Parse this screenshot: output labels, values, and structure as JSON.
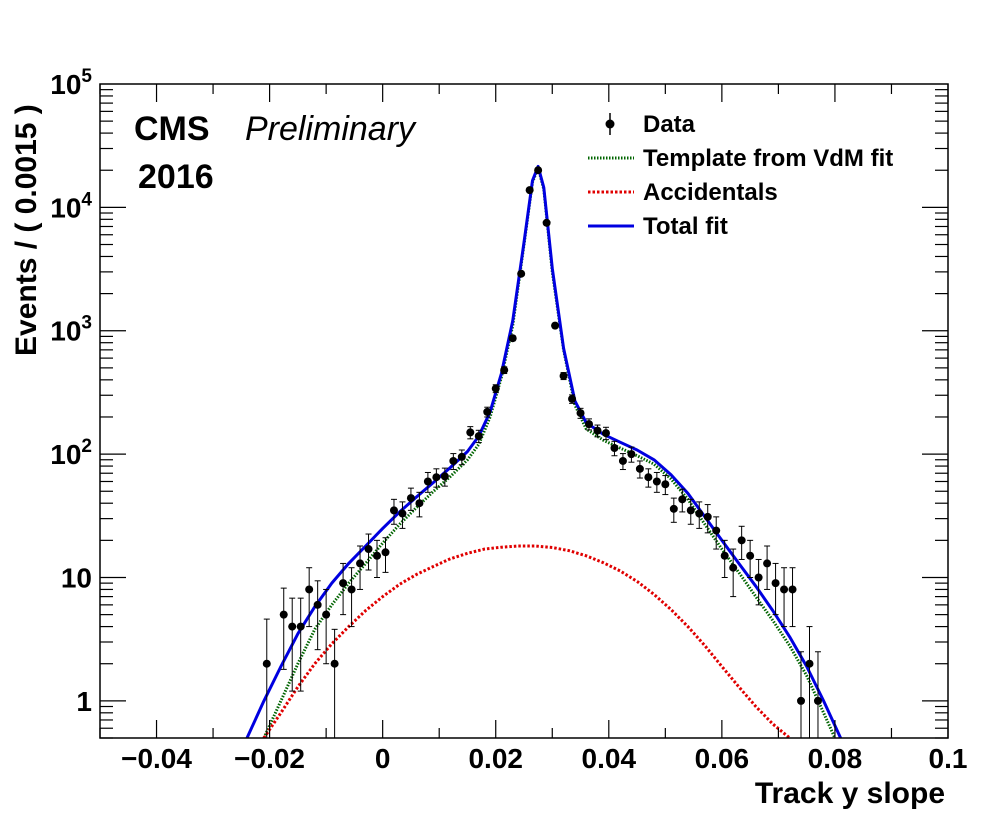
{
  "chart_data": {
    "type": "scatter",
    "experiment": "CMS",
    "status": "Preliminary",
    "year": "2016",
    "xlabel": "Track y slope",
    "ylabel": "Events / ( 0.0015 )",
    "xlim": [
      -0.05,
      0.1
    ],
    "ylim": [
      0.5,
      100000
    ],
    "log_y": true,
    "x_tick_labels": [
      "−0.04",
      "−0.02",
      "0",
      "0.02",
      "0.04",
      "0.06",
      "0.08",
      "0.1"
    ],
    "x_tick_values": [
      -0.04,
      -0.02,
      0,
      0.02,
      0.04,
      0.06,
      0.08,
      0.1
    ],
    "y_tick_values": [
      1,
      10,
      100,
      1000,
      10000,
      100000
    ],
    "y_tick_labels": [
      {
        "base": "1",
        "exp": ""
      },
      {
        "base": "10",
        "exp": ""
      },
      {
        "base": "10",
        "exp": "2"
      },
      {
        "base": "10",
        "exp": "3"
      },
      {
        "base": "10",
        "exp": "4"
      },
      {
        "base": "10",
        "exp": "5"
      }
    ],
    "legend": {
      "position": "top-right",
      "entries": [
        {
          "label": "Data",
          "style": "marker"
        },
        {
          "label": "Template from VdM fit",
          "style": "dotted",
          "color": "#006400"
        },
        {
          "label": "Accidentals",
          "style": "dotted",
          "color": "#e00000"
        },
        {
          "label": "Total fit",
          "style": "solid",
          "color": "#0000e0"
        }
      ]
    },
    "data_points": {
      "name": "Data",
      "points": [
        [
          -0.0205,
          2,
          2.6
        ],
        [
          -0.0175,
          5,
          3.2
        ],
        [
          -0.016,
          4,
          2.8
        ],
        [
          -0.0145,
          4,
          2.8
        ],
        [
          -0.013,
          8,
          4
        ],
        [
          -0.0115,
          6,
          3.4
        ],
        [
          -0.01,
          5,
          3
        ],
        [
          -0.0085,
          2,
          1.8
        ],
        [
          -0.007,
          9,
          4
        ],
        [
          -0.0055,
          8,
          4
        ],
        [
          -0.004,
          13,
          5
        ],
        [
          -0.0025,
          17,
          5.5
        ],
        [
          -0.001,
          15,
          5
        ],
        [
          0.0005,
          16,
          5
        ],
        [
          0.002,
          35,
          8
        ],
        [
          0.0035,
          33,
          8
        ],
        [
          0.005,
          44,
          9
        ],
        [
          0.0065,
          40,
          9
        ],
        [
          0.008,
          60,
          11
        ],
        [
          0.0095,
          65,
          11
        ],
        [
          0.011,
          66,
          11
        ],
        [
          0.0125,
          88,
          13
        ],
        [
          0.014,
          95,
          13
        ],
        [
          0.0155,
          150,
          17
        ],
        [
          0.017,
          140,
          16
        ],
        [
          0.0185,
          220,
          20
        ],
        [
          0.02,
          340,
          25
        ],
        [
          0.0215,
          480,
          30
        ],
        [
          0.023,
          870,
          40
        ],
        [
          0.0245,
          2900,
          70
        ],
        [
          0.026,
          13800,
          160
        ],
        [
          0.0275,
          20000,
          200
        ],
        [
          0.029,
          7500,
          120
        ],
        [
          0.0305,
          1100,
          45
        ],
        [
          0.032,
          430,
          28
        ],
        [
          0.0335,
          280,
          22
        ],
        [
          0.035,
          215,
          20
        ],
        [
          0.0365,
          175,
          18
        ],
        [
          0.038,
          155,
          17
        ],
        [
          0.0395,
          148,
          17
        ],
        [
          0.041,
          112,
          15
        ],
        [
          0.0425,
          88,
          13
        ],
        [
          0.044,
          100,
          14
        ],
        [
          0.0455,
          76,
          12
        ],
        [
          0.047,
          65,
          11
        ],
        [
          0.0485,
          60,
          11
        ],
        [
          0.05,
          57,
          10
        ],
        [
          0.0515,
          36,
          8
        ],
        [
          0.053,
          43,
          9
        ],
        [
          0.0545,
          35,
          8
        ],
        [
          0.056,
          33,
          8
        ],
        [
          0.0575,
          31,
          8
        ],
        [
          0.059,
          24,
          7
        ],
        [
          0.0605,
          15,
          5
        ],
        [
          0.062,
          12,
          5
        ],
        [
          0.0635,
          20,
          6
        ],
        [
          0.065,
          15,
          5
        ],
        [
          0.0665,
          10,
          4
        ],
        [
          0.068,
          13,
          5
        ],
        [
          0.0695,
          9,
          4
        ],
        [
          0.071,
          8,
          4
        ],
        [
          0.0725,
          8,
          4
        ],
        [
          0.074,
          1,
          1.5
        ],
        [
          0.0755,
          2,
          2
        ],
        [
          0.077,
          1,
          1.5
        ]
      ]
    },
    "series": [
      {
        "name": "Template from VdM fit",
        "color": "#006400",
        "style": "dotted",
        "points": [
          [
            -0.021,
            0.5
          ],
          [
            -0.018,
            1.0
          ],
          [
            -0.015,
            2.0
          ],
          [
            -0.012,
            3.8
          ],
          [
            -0.009,
            6.0
          ],
          [
            -0.006,
            9.0
          ],
          [
            -0.003,
            13
          ],
          [
            0.0,
            19
          ],
          [
            0.003,
            27
          ],
          [
            0.006,
            37
          ],
          [
            0.009,
            50
          ],
          [
            0.012,
            66
          ],
          [
            0.015,
            90
          ],
          [
            0.017,
            120
          ],
          [
            0.019,
            200
          ],
          [
            0.021,
            420
          ],
          [
            0.023,
            1100
          ],
          [
            0.025,
            5000
          ],
          [
            0.0265,
            16000
          ],
          [
            0.0275,
            21000
          ],
          [
            0.0285,
            14000
          ],
          [
            0.03,
            3000
          ],
          [
            0.032,
            700
          ],
          [
            0.034,
            250
          ],
          [
            0.036,
            160
          ],
          [
            0.039,
            130
          ],
          [
            0.042,
            112
          ],
          [
            0.045,
            97
          ],
          [
            0.048,
            83
          ],
          [
            0.051,
            63
          ],
          [
            0.054,
            43
          ],
          [
            0.057,
            27
          ],
          [
            0.06,
            17
          ],
          [
            0.063,
            11
          ],
          [
            0.066,
            7.0
          ],
          [
            0.069,
            4.5
          ],
          [
            0.072,
            2.8
          ],
          [
            0.075,
            1.6
          ],
          [
            0.078,
            0.8
          ],
          [
            0.08,
            0.5
          ]
        ]
      },
      {
        "name": "Accidentals",
        "color": "#e00000",
        "style": "dotted",
        "points": [
          [
            -0.021,
            0.5
          ],
          [
            -0.018,
            0.8
          ],
          [
            -0.015,
            1.3
          ],
          [
            -0.012,
            2.0
          ],
          [
            -0.009,
            2.9
          ],
          [
            -0.006,
            4.0
          ],
          [
            -0.003,
            5.4
          ],
          [
            0.0,
            7.0
          ],
          [
            0.003,
            8.8
          ],
          [
            0.006,
            10.6
          ],
          [
            0.009,
            12.3
          ],
          [
            0.012,
            14.2
          ],
          [
            0.015,
            15.7
          ],
          [
            0.018,
            17.0
          ],
          [
            0.021,
            17.6
          ],
          [
            0.024,
            18.0
          ],
          [
            0.027,
            18.0
          ],
          [
            0.03,
            17.5
          ],
          [
            0.033,
            16.5
          ],
          [
            0.036,
            15.0
          ],
          [
            0.039,
            13.2
          ],
          [
            0.042,
            11.3
          ],
          [
            0.045,
            9.3
          ],
          [
            0.048,
            7.3
          ],
          [
            0.051,
            5.5
          ],
          [
            0.054,
            4.0
          ],
          [
            0.057,
            2.8
          ],
          [
            0.06,
            1.9
          ],
          [
            0.063,
            1.3
          ],
          [
            0.066,
            0.9
          ],
          [
            0.069,
            0.65
          ],
          [
            0.072,
            0.5
          ]
        ]
      },
      {
        "name": "Total fit",
        "color": "#0000e0",
        "style": "solid",
        "points": [
          [
            -0.024,
            0.5
          ],
          [
            -0.021,
            1.0
          ],
          [
            -0.018,
            1.9
          ],
          [
            -0.015,
            3.5
          ],
          [
            -0.012,
            5.8
          ],
          [
            -0.009,
            9.0
          ],
          [
            -0.006,
            13
          ],
          [
            -0.003,
            18
          ],
          [
            0.0,
            25
          ],
          [
            0.003,
            34
          ],
          [
            0.006,
            45
          ],
          [
            0.009,
            59
          ],
          [
            0.012,
            78
          ],
          [
            0.015,
            105
          ],
          [
            0.017,
            140
          ],
          [
            0.019,
            220
          ],
          [
            0.021,
            450
          ],
          [
            0.023,
            1200
          ],
          [
            0.025,
            5200
          ],
          [
            0.0265,
            16500
          ],
          [
            0.0275,
            21500
          ],
          [
            0.0285,
            14500
          ],
          [
            0.03,
            3200
          ],
          [
            0.032,
            720
          ],
          [
            0.034,
            270
          ],
          [
            0.036,
            180
          ],
          [
            0.039,
            145
          ],
          [
            0.042,
            125
          ],
          [
            0.045,
            108
          ],
          [
            0.048,
            90
          ],
          [
            0.051,
            68
          ],
          [
            0.054,
            48
          ],
          [
            0.057,
            31
          ],
          [
            0.06,
            20
          ],
          [
            0.063,
            13
          ],
          [
            0.066,
            8.5
          ],
          [
            0.069,
            5.4
          ],
          [
            0.072,
            3.3
          ],
          [
            0.075,
            1.9
          ],
          [
            0.078,
            1.0
          ],
          [
            0.081,
            0.5
          ]
        ]
      }
    ]
  }
}
